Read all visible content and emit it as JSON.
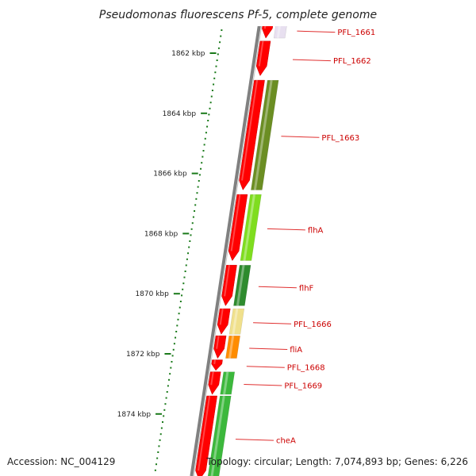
{
  "title": "Pseudomonas fluorescens Pf-5, complete genome",
  "footer": {
    "accession": "Accession: NC_004129",
    "topology": "Topology: circular; Length: 7,074,893 bp; Genes: 6,226"
  },
  "colors": {
    "backbone": "#808080",
    "tick": "#1a7a1a",
    "label": "#cc0000",
    "leader": "#e03030",
    "forward_strand": "#ff0000"
  },
  "scale": {
    "unit": "kbp",
    "ticks": [
      {
        "kbp": 1862,
        "label": "1862 kbp"
      },
      {
        "kbp": 1864,
        "label": "1864 kbp"
      },
      {
        "kbp": 1866,
        "label": "1866 kbp"
      },
      {
        "kbp": 1868,
        "label": "1868 kbp"
      },
      {
        "kbp": 1870,
        "label": "1870 kbp"
      },
      {
        "kbp": 1872,
        "label": "1872 kbp"
      },
      {
        "kbp": 1874,
        "label": "1874 kbp"
      }
    ]
  },
  "genes": [
    {
      "name": "PFL_1661",
      "start_kbp": 1860.95,
      "end_kbp": 1861.5,
      "color": "#ff0000",
      "cog": "#e8e0f0"
    },
    {
      "name": "PFL_1662",
      "start_kbp": 1861.6,
      "end_kbp": 1862.75,
      "color": "#ff0000",
      "cog": ""
    },
    {
      "name": "PFL_1663",
      "start_kbp": 1862.9,
      "end_kbp": 1866.55,
      "color": "#ff0000",
      "cog": "#6b8e23"
    },
    {
      "name": "flhA",
      "start_kbp": 1866.7,
      "end_kbp": 1868.9,
      "color": "#ff0000",
      "cog": "#7fdd1f"
    },
    {
      "name": "flhF",
      "start_kbp": 1869.05,
      "end_kbp": 1870.4,
      "color": "#ff0000",
      "cog": "#2e8b2e"
    },
    {
      "name": "PFL_1666",
      "start_kbp": 1870.5,
      "end_kbp": 1871.35,
      "color": "#ff0000",
      "cog": "#f0e08c"
    },
    {
      "name": "fliA",
      "start_kbp": 1871.4,
      "end_kbp": 1872.15,
      "color": "#ff0000",
      "cog": "#ff8c00"
    },
    {
      "name": "PFL_1668",
      "start_kbp": 1872.2,
      "end_kbp": 1872.55,
      "color": "#ff0000",
      "cog": ""
    },
    {
      "name": "PFL_1669",
      "start_kbp": 1872.6,
      "end_kbp": 1873.35,
      "color": "#ff0000",
      "cog": "#3cb83c"
    },
    {
      "name": "cheA",
      "start_kbp": 1873.4,
      "end_kbp": 1876.2,
      "color": "#ff0000",
      "cog": "#3cb83c"
    }
  ]
}
